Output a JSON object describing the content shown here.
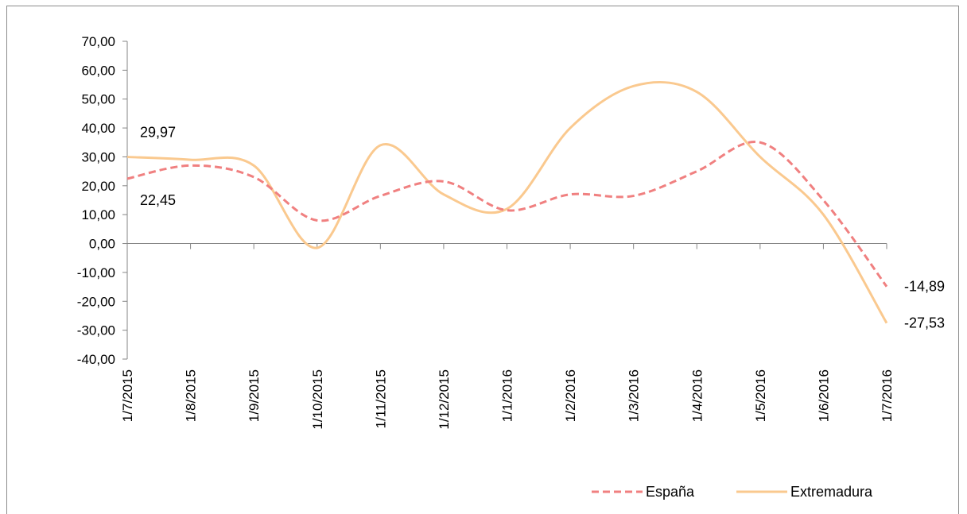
{
  "chart_data": {
    "type": "line",
    "title": "",
    "xlabel": "",
    "ylabel": "",
    "ylim": [
      -40,
      70
    ],
    "y_ticks": [
      70,
      60,
      50,
      40,
      30,
      20,
      10,
      0,
      -10,
      -20,
      -30,
      -40
    ],
    "y_tick_labels": [
      "70,00",
      "60,00",
      "50,00",
      "40,00",
      "30,00",
      "20,00",
      "10,00",
      "0,00",
      "-10,00",
      "-20,00",
      "-30,00",
      "-40,00"
    ],
    "categories": [
      "1/7/2015",
      "1/8/2015",
      "1/9/2015",
      "1/10/2015",
      "1/11/2015",
      "1/12/2015",
      "1/1/2016",
      "1/2/2016",
      "1/3/2016",
      "1/4/2016",
      "1/5/2016",
      "1/6/2016",
      "1/7/2016"
    ],
    "series": [
      {
        "name": "España",
        "color": "#f08080",
        "dash": "dashed",
        "values": [
          22.45,
          27.0,
          23.0,
          8.0,
          16.5,
          21.5,
          11.5,
          17.0,
          16.5,
          25.0,
          35.0,
          15.0,
          -14.89
        ]
      },
      {
        "name": "Extremadura",
        "color": "#fac98f",
        "dash": "solid",
        "values": [
          29.97,
          29.0,
          27.0,
          -1.5,
          34.0,
          17.0,
          12.0,
          40.0,
          54.5,
          52.5,
          30.0,
          10.0,
          -27.53
        ]
      }
    ],
    "data_labels": [
      {
        "series": "Extremadura",
        "index": 0,
        "text": "29,97",
        "anchor": "above"
      },
      {
        "series": "España",
        "index": 0,
        "text": "22,45",
        "anchor": "below"
      },
      {
        "series": "España",
        "index": 12,
        "text": "-14,89",
        "anchor": "right"
      },
      {
        "series": "Extremadura",
        "index": 12,
        "text": "-27,53",
        "anchor": "right"
      }
    ],
    "grid": false,
    "legend": {
      "position": "bottom-right",
      "entries": [
        "España",
        "Extremadura"
      ]
    }
  }
}
